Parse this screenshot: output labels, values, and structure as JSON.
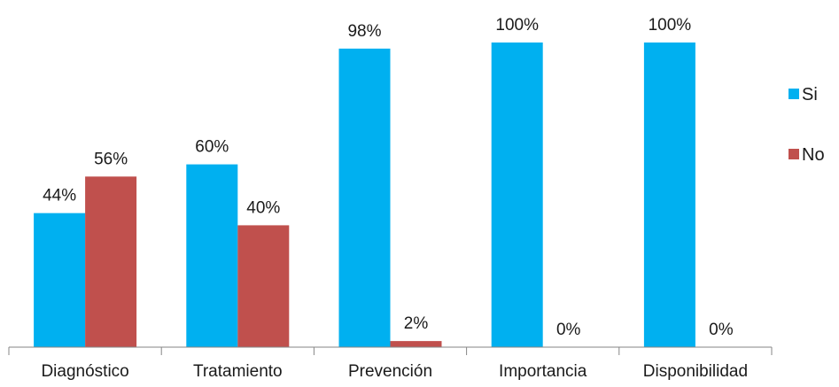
{
  "chart_data": {
    "type": "bar",
    "categories": [
      "Diagnóstico",
      "Tratamiento",
      "Prevención",
      "Importancia",
      "Disponibilidad"
    ],
    "series": [
      {
        "name": "Si",
        "color": "#00b0f0",
        "values": [
          44,
          60,
          98,
          100,
          100
        ],
        "labels": [
          "44%",
          "60%",
          "98%",
          "100%",
          "100%"
        ]
      },
      {
        "name": "No",
        "color": "#c0504d",
        "values": [
          56,
          40,
          2,
          0,
          0
        ],
        "labels": [
          "56%",
          "40%",
          "2%",
          "0%",
          "0%"
        ]
      }
    ],
    "ylim": [
      0,
      100
    ],
    "legend_position": "right",
    "grid": false
  }
}
